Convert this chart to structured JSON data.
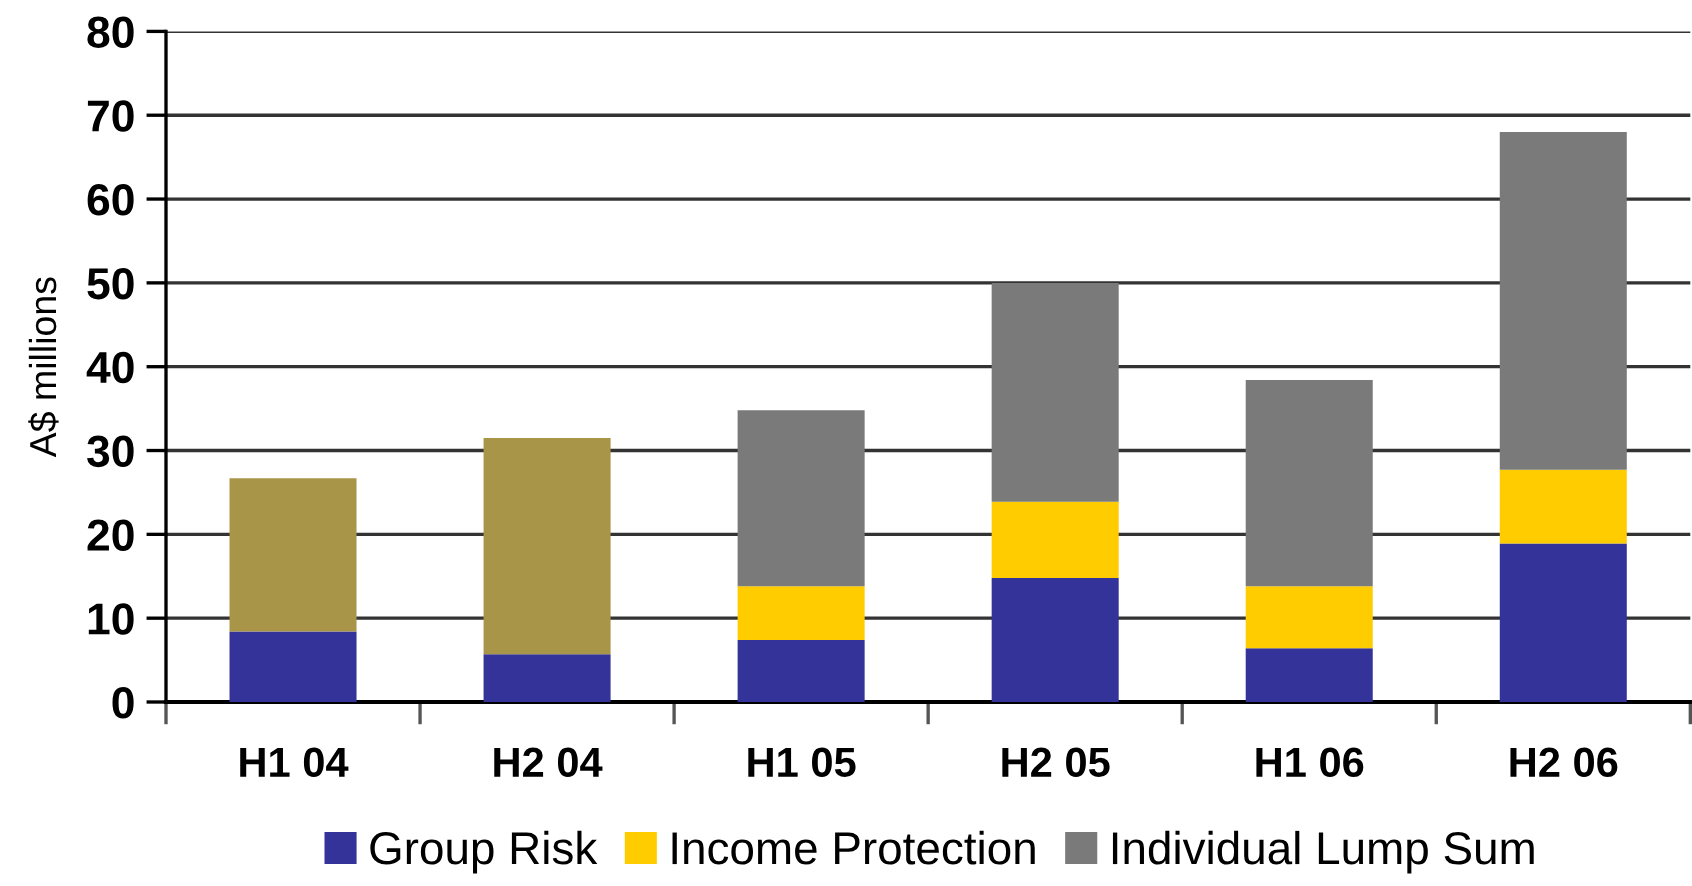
{
  "chart_data": {
    "type": "bar",
    "stacked": true,
    "ylabel": "A$ millions",
    "categories": [
      "H1 04",
      "H2 04",
      "H1 05",
      "H2 05",
      "H1 06",
      "H2 06"
    ],
    "series": [
      {
        "name": "Group Risk",
        "color": "#333399",
        "values": [
          8.4,
          5.7,
          7.4,
          14.8,
          6.4,
          18.9
        ]
      },
      {
        "name": "Income Protection",
        "color": "#ffcc00",
        "values": [
          null,
          null,
          6.4,
          9.1,
          7.4,
          8.8
        ]
      },
      {
        "name": "Individual Lump Sum",
        "color": "#7a7a7a",
        "values": [
          null,
          null,
          21.0,
          26.1,
          24.6,
          40.3
        ]
      },
      {
        "color": "#a99548",
        "values": [
          18.3,
          25.8,
          null,
          null,
          null,
          null
        ]
      }
    ],
    "ylim": [
      0,
      80
    ],
    "yticks": [
      0,
      10,
      20,
      30,
      40,
      50,
      60,
      70,
      80
    ],
    "grid": "y",
    "legend": "bottom"
  }
}
